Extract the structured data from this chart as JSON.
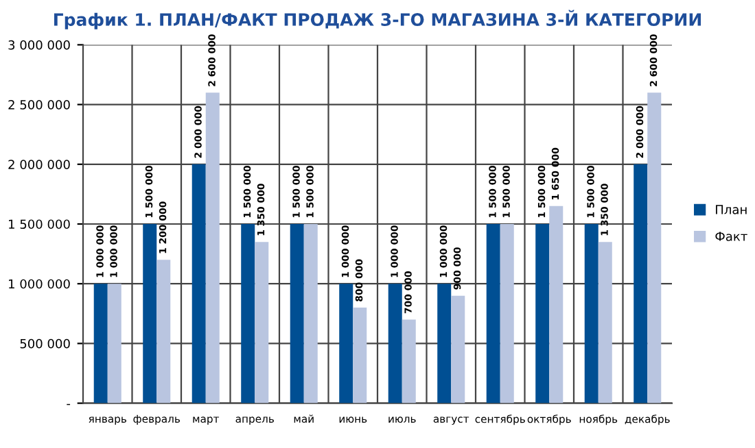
{
  "chart_data": {
    "type": "bar",
    "title": "График 1. ПЛАН/ФАКТ ПРОДАЖ 3-ГО МАГАЗИНА 3-Й КАТЕГОРИИ",
    "categories": [
      "январь",
      "февраль",
      "март",
      "апрель",
      "май",
      "июнь",
      "июль",
      "август",
      "сентябрь",
      "октябрь",
      "ноябрь",
      "декабрь"
    ],
    "series": [
      {
        "name": "План",
        "color": "#004f93",
        "values": [
          1000000,
          1500000,
          2000000,
          1500000,
          1500000,
          1000000,
          1000000,
          1000000,
          1500000,
          1500000,
          1500000,
          2000000
        ],
        "value_labels": [
          "1 000 000",
          "1 500 000",
          "2 000 000",
          "1 500 000",
          "1 500 000",
          "1 000 000",
          "1 000 000",
          "1 000 000",
          "1 500 000",
          "1 500 000",
          "1 500 000",
          "2 000 000"
        ]
      },
      {
        "name": "Факт",
        "color": "#b9c5e0",
        "values": [
          1000000,
          1200000,
          2600000,
          1350000,
          1500000,
          800000,
          700000,
          900000,
          1500000,
          1650000,
          1350000,
          2600000
        ],
        "value_labels": [
          "1 000 000",
          "1 200 000",
          "2 600 000",
          "1 350 000",
          "1 500 000",
          "800 000",
          "700 000",
          "900 000",
          "1 500 000",
          "1 650 000",
          "1 350 000",
          "2 600 000"
        ]
      }
    ],
    "ylim": [
      0,
      3000000
    ],
    "yticks": [
      {
        "value": 0,
        "label": "-"
      },
      {
        "value": 500000,
        "label": "500 000"
      },
      {
        "value": 1000000,
        "label": "1 000 000"
      },
      {
        "value": 1500000,
        "label": "1 500 000"
      },
      {
        "value": 2000000,
        "label": "2 000 000"
      },
      {
        "value": 2500000,
        "label": "2 500 000"
      },
      {
        "value": 3000000,
        "label": "3 000 000"
      }
    ],
    "grid": true,
    "legend": "right"
  }
}
